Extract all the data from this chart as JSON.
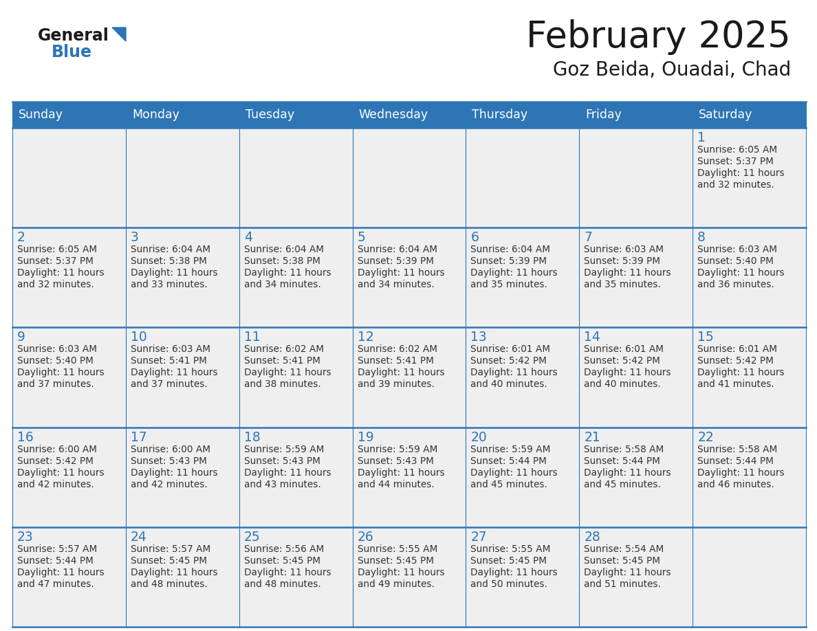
{
  "title": "February 2025",
  "subtitle": "Goz Beida, Ouadai, Chad",
  "header_bg": "#2E75B6",
  "header_text": "#FFFFFF",
  "days_of_week": [
    "Sunday",
    "Monday",
    "Tuesday",
    "Wednesday",
    "Thursday",
    "Friday",
    "Saturday"
  ],
  "cell_bg": "#EFEFEF",
  "grid_line_color": "#2E75B6",
  "day_number_color": "#2E75B6",
  "info_text_color": "#333333",
  "logo_general_color": "#1A1A1A",
  "logo_blue_color": "#2E75B6",
  "calendar_data": [
    {
      "day": 1,
      "col": 6,
      "row": 0,
      "sunrise": "6:05 AM",
      "sunset": "5:37 PM",
      "daylight": "11 hours and 32 minutes."
    },
    {
      "day": 2,
      "col": 0,
      "row": 1,
      "sunrise": "6:05 AM",
      "sunset": "5:37 PM",
      "daylight": "11 hours and 32 minutes."
    },
    {
      "day": 3,
      "col": 1,
      "row": 1,
      "sunrise": "6:04 AM",
      "sunset": "5:38 PM",
      "daylight": "11 hours and 33 minutes."
    },
    {
      "day": 4,
      "col": 2,
      "row": 1,
      "sunrise": "6:04 AM",
      "sunset": "5:38 PM",
      "daylight": "11 hours and 34 minutes."
    },
    {
      "day": 5,
      "col": 3,
      "row": 1,
      "sunrise": "6:04 AM",
      "sunset": "5:39 PM",
      "daylight": "11 hours and 34 minutes."
    },
    {
      "day": 6,
      "col": 4,
      "row": 1,
      "sunrise": "6:04 AM",
      "sunset": "5:39 PM",
      "daylight": "11 hours and 35 minutes."
    },
    {
      "day": 7,
      "col": 5,
      "row": 1,
      "sunrise": "6:03 AM",
      "sunset": "5:39 PM",
      "daylight": "11 hours and 35 minutes."
    },
    {
      "day": 8,
      "col": 6,
      "row": 1,
      "sunrise": "6:03 AM",
      "sunset": "5:40 PM",
      "daylight": "11 hours and 36 minutes."
    },
    {
      "day": 9,
      "col": 0,
      "row": 2,
      "sunrise": "6:03 AM",
      "sunset": "5:40 PM",
      "daylight": "11 hours and 37 minutes."
    },
    {
      "day": 10,
      "col": 1,
      "row": 2,
      "sunrise": "6:03 AM",
      "sunset": "5:41 PM",
      "daylight": "11 hours and 37 minutes."
    },
    {
      "day": 11,
      "col": 2,
      "row": 2,
      "sunrise": "6:02 AM",
      "sunset": "5:41 PM",
      "daylight": "11 hours and 38 minutes."
    },
    {
      "day": 12,
      "col": 3,
      "row": 2,
      "sunrise": "6:02 AM",
      "sunset": "5:41 PM",
      "daylight": "11 hours and 39 minutes."
    },
    {
      "day": 13,
      "col": 4,
      "row": 2,
      "sunrise": "6:01 AM",
      "sunset": "5:42 PM",
      "daylight": "11 hours and 40 minutes."
    },
    {
      "day": 14,
      "col": 5,
      "row": 2,
      "sunrise": "6:01 AM",
      "sunset": "5:42 PM",
      "daylight": "11 hours and 40 minutes."
    },
    {
      "day": 15,
      "col": 6,
      "row": 2,
      "sunrise": "6:01 AM",
      "sunset": "5:42 PM",
      "daylight": "11 hours and 41 minutes."
    },
    {
      "day": 16,
      "col": 0,
      "row": 3,
      "sunrise": "6:00 AM",
      "sunset": "5:42 PM",
      "daylight": "11 hours and 42 minutes."
    },
    {
      "day": 17,
      "col": 1,
      "row": 3,
      "sunrise": "6:00 AM",
      "sunset": "5:43 PM",
      "daylight": "11 hours and 42 minutes."
    },
    {
      "day": 18,
      "col": 2,
      "row": 3,
      "sunrise": "5:59 AM",
      "sunset": "5:43 PM",
      "daylight": "11 hours and 43 minutes."
    },
    {
      "day": 19,
      "col": 3,
      "row": 3,
      "sunrise": "5:59 AM",
      "sunset": "5:43 PM",
      "daylight": "11 hours and 44 minutes."
    },
    {
      "day": 20,
      "col": 4,
      "row": 3,
      "sunrise": "5:59 AM",
      "sunset": "5:44 PM",
      "daylight": "11 hours and 45 minutes."
    },
    {
      "day": 21,
      "col": 5,
      "row": 3,
      "sunrise": "5:58 AM",
      "sunset": "5:44 PM",
      "daylight": "11 hours and 45 minutes."
    },
    {
      "day": 22,
      "col": 6,
      "row": 3,
      "sunrise": "5:58 AM",
      "sunset": "5:44 PM",
      "daylight": "11 hours and 46 minutes."
    },
    {
      "day": 23,
      "col": 0,
      "row": 4,
      "sunrise": "5:57 AM",
      "sunset": "5:44 PM",
      "daylight": "11 hours and 47 minutes."
    },
    {
      "day": 24,
      "col": 1,
      "row": 4,
      "sunrise": "5:57 AM",
      "sunset": "5:45 PM",
      "daylight": "11 hours and 48 minutes."
    },
    {
      "day": 25,
      "col": 2,
      "row": 4,
      "sunrise": "5:56 AM",
      "sunset": "5:45 PM",
      "daylight": "11 hours and 48 minutes."
    },
    {
      "day": 26,
      "col": 3,
      "row": 4,
      "sunrise": "5:55 AM",
      "sunset": "5:45 PM",
      "daylight": "11 hours and 49 minutes."
    },
    {
      "day": 27,
      "col": 4,
      "row": 4,
      "sunrise": "5:55 AM",
      "sunset": "5:45 PM",
      "daylight": "11 hours and 50 minutes."
    },
    {
      "day": 28,
      "col": 5,
      "row": 4,
      "sunrise": "5:54 AM",
      "sunset": "5:45 PM",
      "daylight": "11 hours and 51 minutes."
    }
  ]
}
